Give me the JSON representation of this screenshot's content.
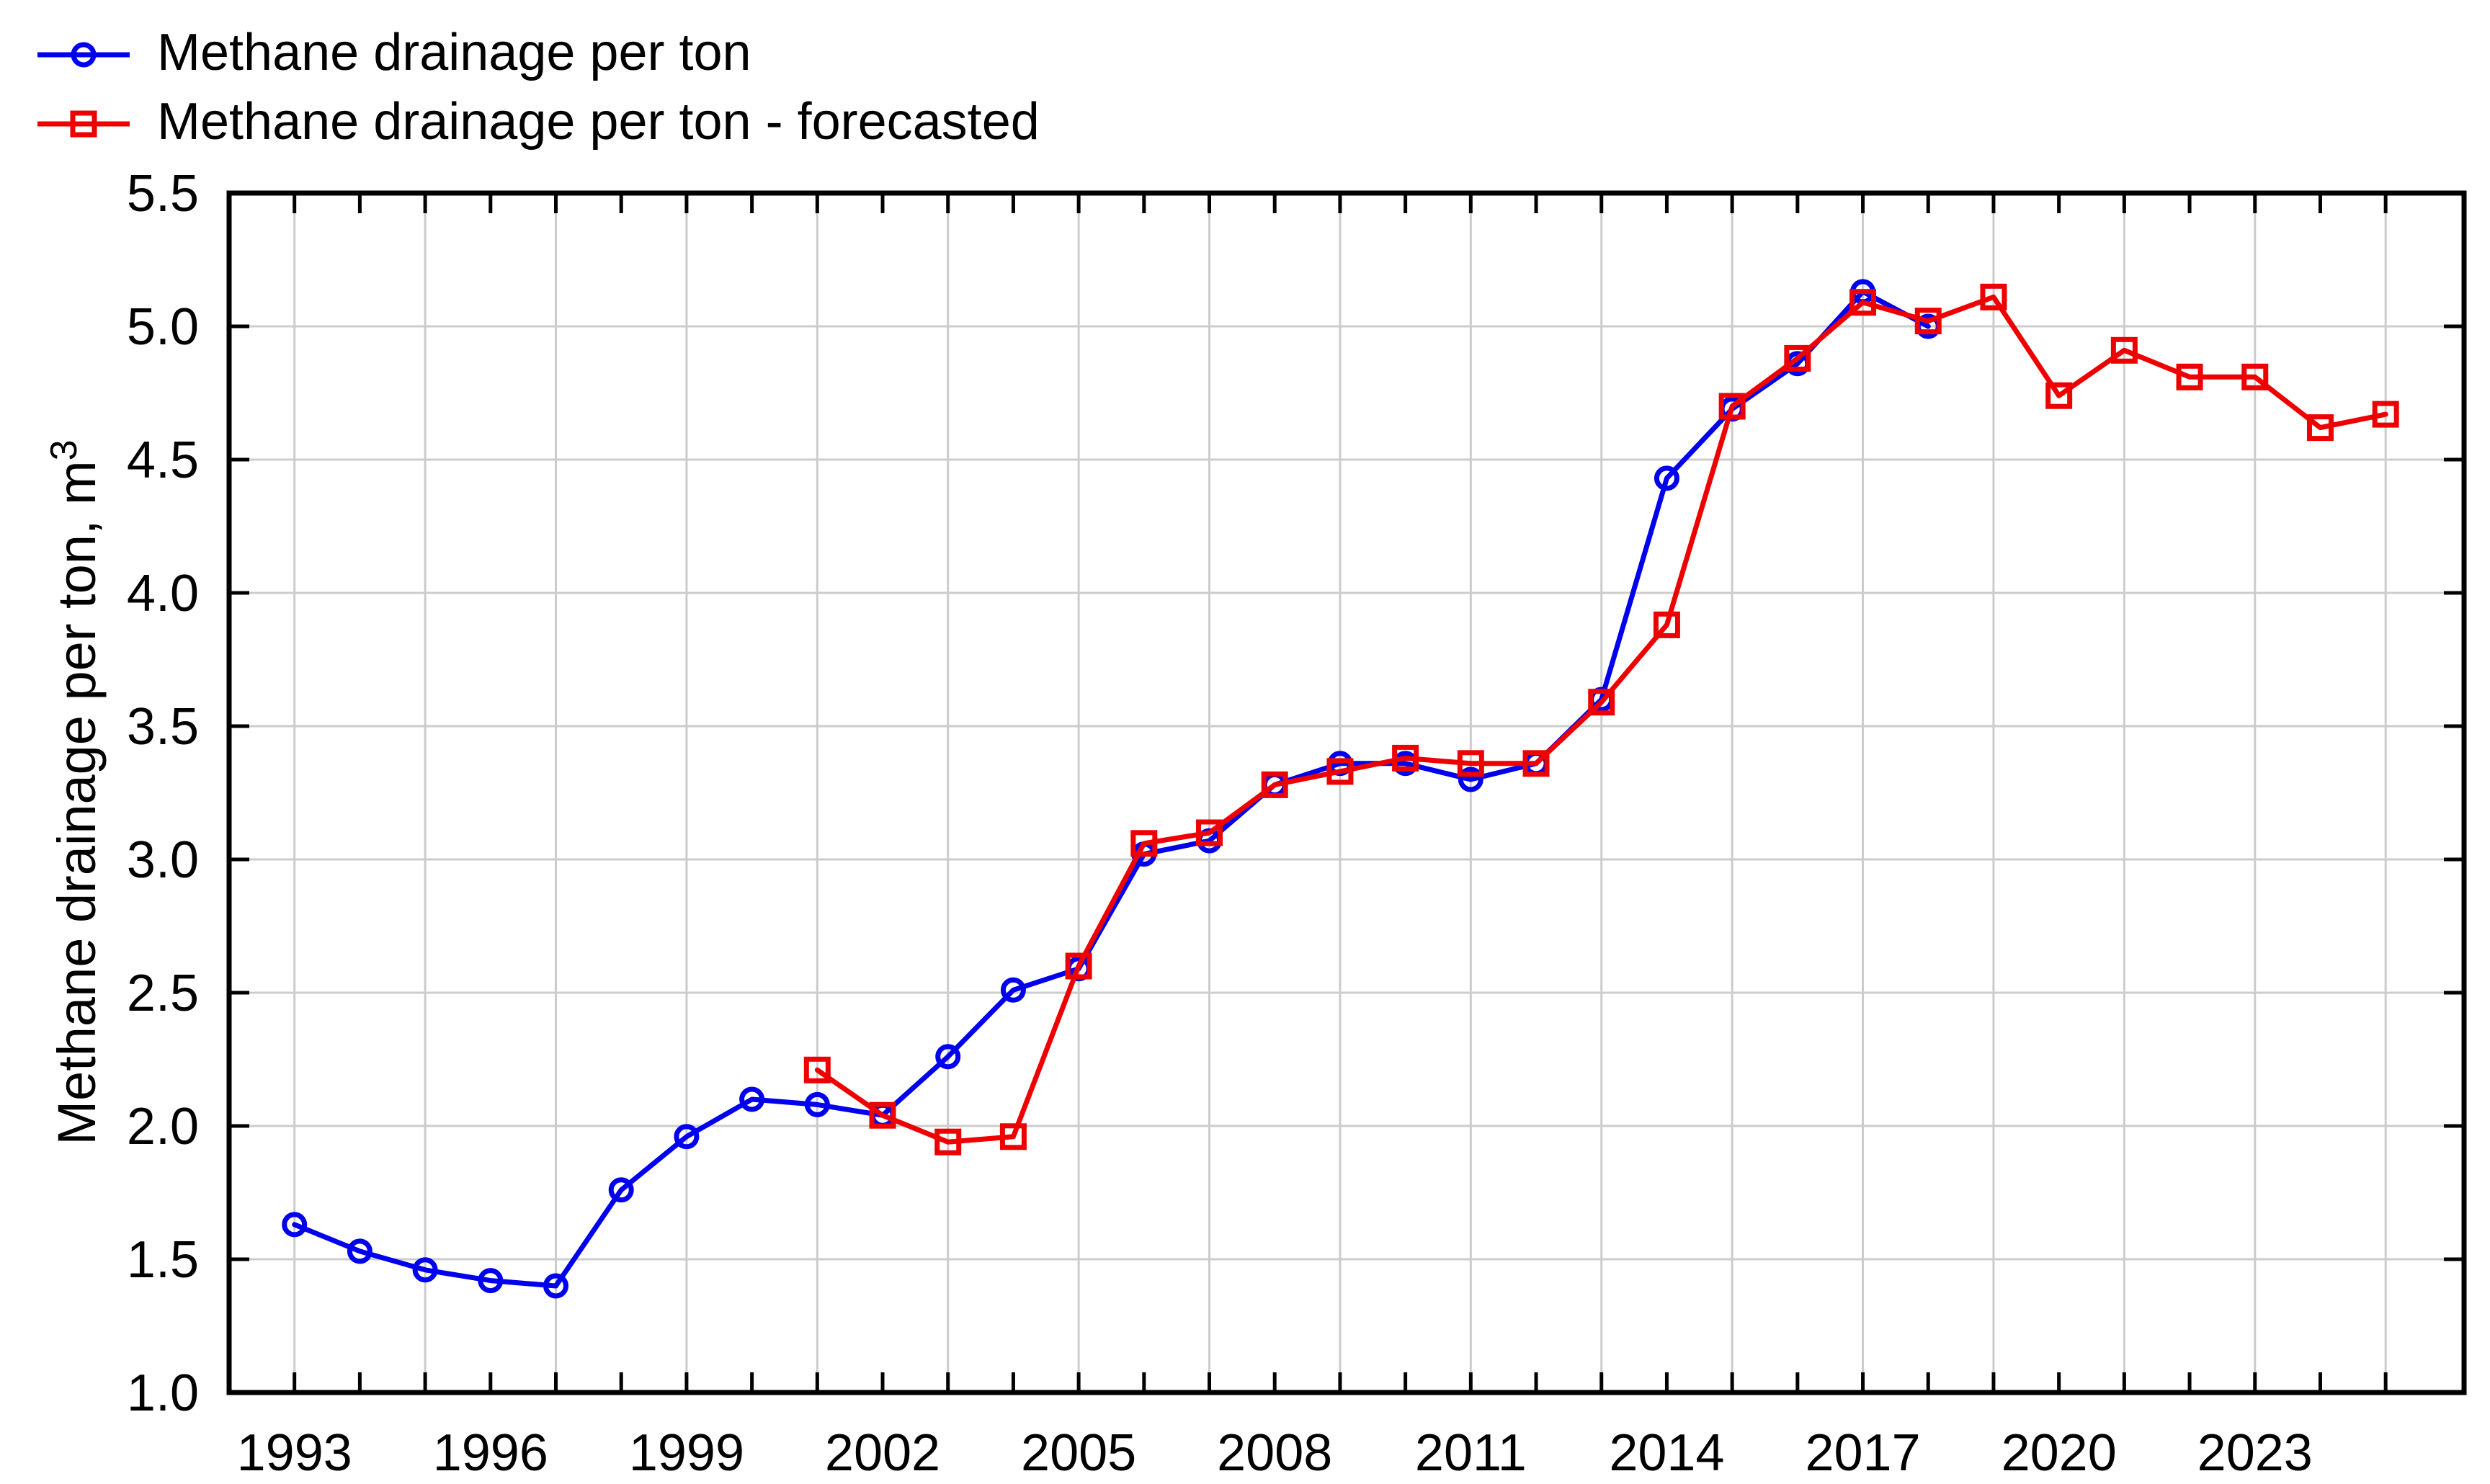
{
  "chart_data": {
    "type": "line",
    "title": "",
    "xlabel": "",
    "ylabel": {
      "text": "Methane drainage per ton, m",
      "sup": "3"
    },
    "x_domain": [
      1992.0,
      2026.2
    ],
    "y_domain": [
      1.0,
      5.5
    ],
    "y_tick_values": [
      1.0,
      1.5,
      2.0,
      2.5,
      3.0,
      3.5,
      4.0,
      4.5,
      5.0,
      5.5
    ],
    "y_tick_labels": [
      "1.0",
      "1.5",
      "2.0",
      "2.5",
      "3.0",
      "3.5",
      "4.0",
      "4.5",
      "5.0",
      "5.5"
    ],
    "x_tick_years": [
      1993,
      1994,
      1995,
      1996,
      1997,
      1998,
      1999,
      2000,
      2001,
      2002,
      2003,
      2004,
      2005,
      2006,
      2007,
      2008,
      2009,
      2010,
      2011,
      2012,
      2013,
      2014,
      2015,
      2016,
      2017,
      2018,
      2019,
      2020,
      2021,
      2022,
      2023,
      2024,
      2025
    ],
    "x_label_years": [
      1993,
      1996,
      1999,
      2002,
      2005,
      2008,
      2011,
      2014,
      2017,
      2020,
      2023
    ],
    "v_grid_years": [
      1993,
      1995,
      1997,
      1999,
      2001,
      2003,
      2005,
      2007,
      2009,
      2011,
      2013,
      2015,
      2017,
      2019,
      2021,
      2023,
      2025
    ],
    "h_grid_values": [
      1.5,
      2.0,
      2.5,
      3.0,
      3.5,
      4.0,
      4.5,
      5.0
    ],
    "grid": true,
    "legend_position": "top-left",
    "grid_color": "#cccccc",
    "frame_color": "#000000",
    "series": [
      {
        "id": "actual",
        "name": "Methane drainage per ton",
        "color": "#0000ee",
        "marker": "circle",
        "x": [
          1993,
          1994,
          1995,
          1996,
          1997,
          1998,
          1999,
          2000,
          2001,
          2002,
          2003,
          2004,
          2005,
          2006,
          2007,
          2008,
          2009,
          2010,
          2011,
          2012,
          2013,
          2014,
          2015,
          2016,
          2017,
          2018
        ],
        "values": [
          1.63,
          1.53,
          1.46,
          1.42,
          1.4,
          1.76,
          1.96,
          2.1,
          2.08,
          2.04,
          2.26,
          2.51,
          2.59,
          3.02,
          3.07,
          3.28,
          3.36,
          3.36,
          3.3,
          3.36,
          3.6,
          4.43,
          4.69,
          4.86,
          5.13,
          5.0
        ]
      },
      {
        "id": "forecast",
        "name": "Methane drainage per ton - forecasted",
        "color": "#ee0000",
        "marker": "square",
        "x": [
          2001,
          2002,
          2003,
          2004,
          2005,
          2006,
          2007,
          2008,
          2009,
          2010,
          2011,
          2012,
          2013,
          2014,
          2015,
          2016,
          2017,
          2018,
          2019,
          2020,
          2021,
          2022,
          2023,
          2024,
          2025
        ],
        "values": [
          2.21,
          2.04,
          1.94,
          1.96,
          2.6,
          3.06,
          3.1,
          3.28,
          3.33,
          3.38,
          3.36,
          3.36,
          3.59,
          3.88,
          4.7,
          4.88,
          5.09,
          5.02,
          5.11,
          4.74,
          4.91,
          4.81,
          4.81,
          4.62,
          4.67
        ]
      }
    ]
  }
}
